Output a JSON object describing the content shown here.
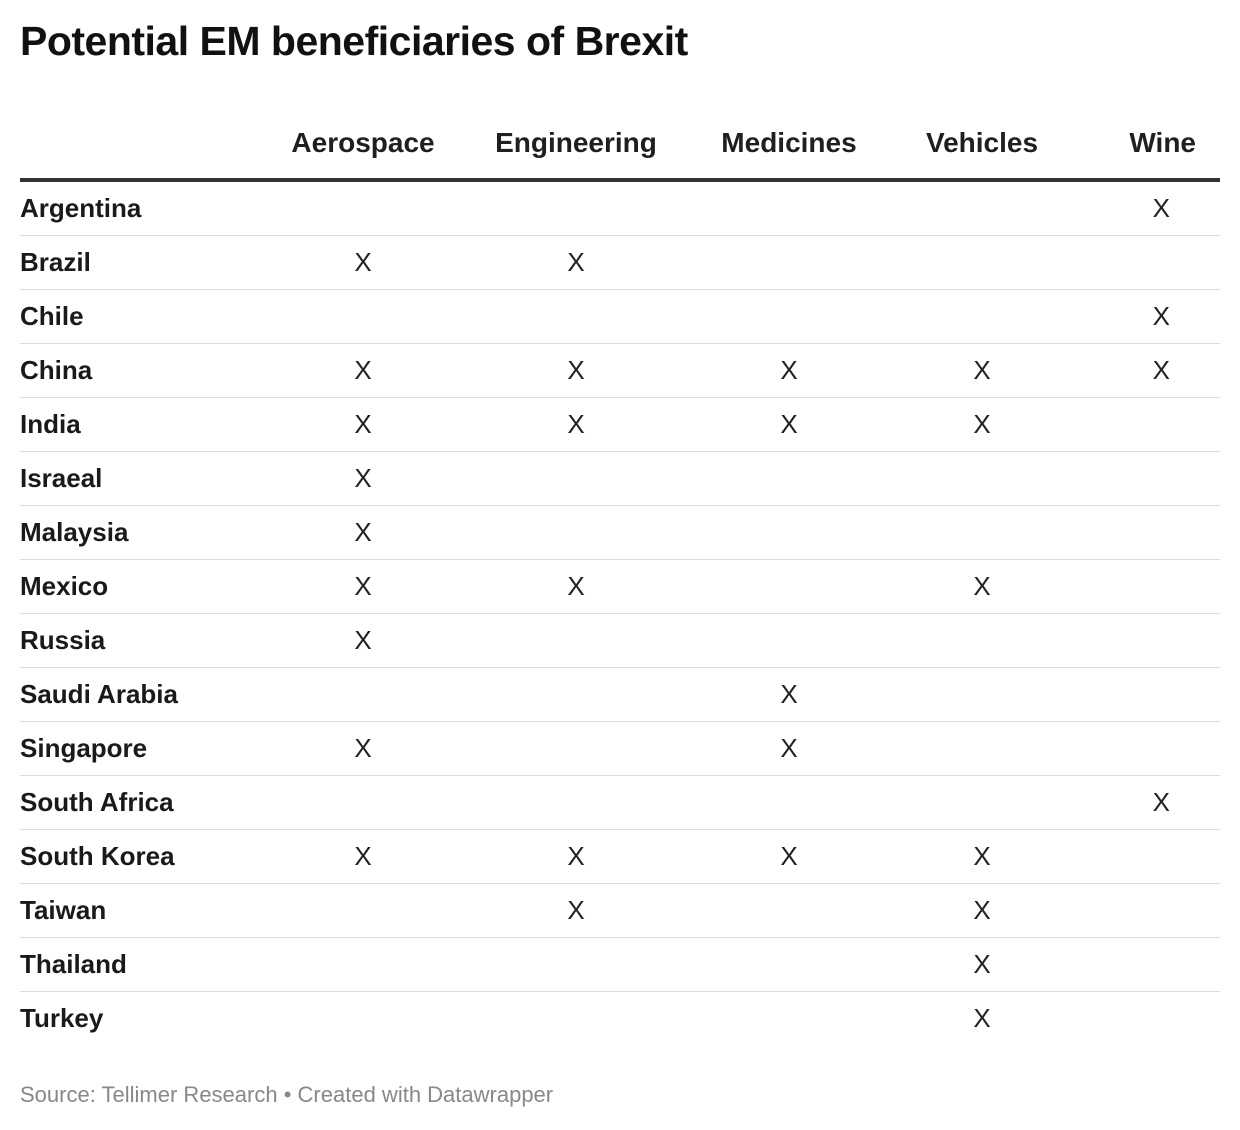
{
  "title": "Potential EM beneficiaries of Brexit",
  "footer": {
    "source": "Source: Tellimer Research",
    "separator": "•",
    "created_with": "Created with Datawrapper"
  },
  "chart_data": {
    "type": "table",
    "title": "Potential EM beneficiaries of Brexit",
    "columns": [
      "",
      "Aerospace",
      "Engineering",
      "Medicines",
      "Vehicles",
      "Wine"
    ],
    "rows": [
      {
        "country": "Argentina",
        "cells": [
          "",
          "",
          "",
          "",
          "X"
        ]
      },
      {
        "country": "Brazil",
        "cells": [
          "X",
          "X",
          "",
          "",
          ""
        ]
      },
      {
        "country": "Chile",
        "cells": [
          "",
          "",
          "",
          "",
          "X"
        ]
      },
      {
        "country": "China",
        "cells": [
          "X",
          "X",
          "X",
          "X",
          "X"
        ]
      },
      {
        "country": "India",
        "cells": [
          "X",
          "X",
          "X",
          "X",
          ""
        ]
      },
      {
        "country": "Israeal",
        "cells": [
          "X",
          "",
          "",
          "",
          ""
        ]
      },
      {
        "country": "Malaysia",
        "cells": [
          "X",
          "",
          "",
          "",
          ""
        ]
      },
      {
        "country": "Mexico",
        "cells": [
          "X",
          "X",
          "",
          "X",
          ""
        ]
      },
      {
        "country": "Russia",
        "cells": [
          "X",
          "",
          "",
          "",
          ""
        ]
      },
      {
        "country": "Saudi Arabia",
        "cells": [
          "",
          "",
          "X",
          "",
          ""
        ]
      },
      {
        "country": "Singapore",
        "cells": [
          "X",
          "",
          "X",
          "",
          ""
        ]
      },
      {
        "country": "South Africa",
        "cells": [
          "",
          "",
          "",
          "",
          "X"
        ]
      },
      {
        "country": "South Korea",
        "cells": [
          "X",
          "X",
          "X",
          "X",
          ""
        ]
      },
      {
        "country": "Taiwan",
        "cells": [
          "",
          "X",
          "",
          "X",
          ""
        ]
      },
      {
        "country": "Thailand",
        "cells": [
          "",
          "",
          "",
          "X",
          ""
        ]
      },
      {
        "country": "Turkey",
        "cells": [
          "",
          "",
          "",
          "X",
          ""
        ]
      }
    ]
  }
}
